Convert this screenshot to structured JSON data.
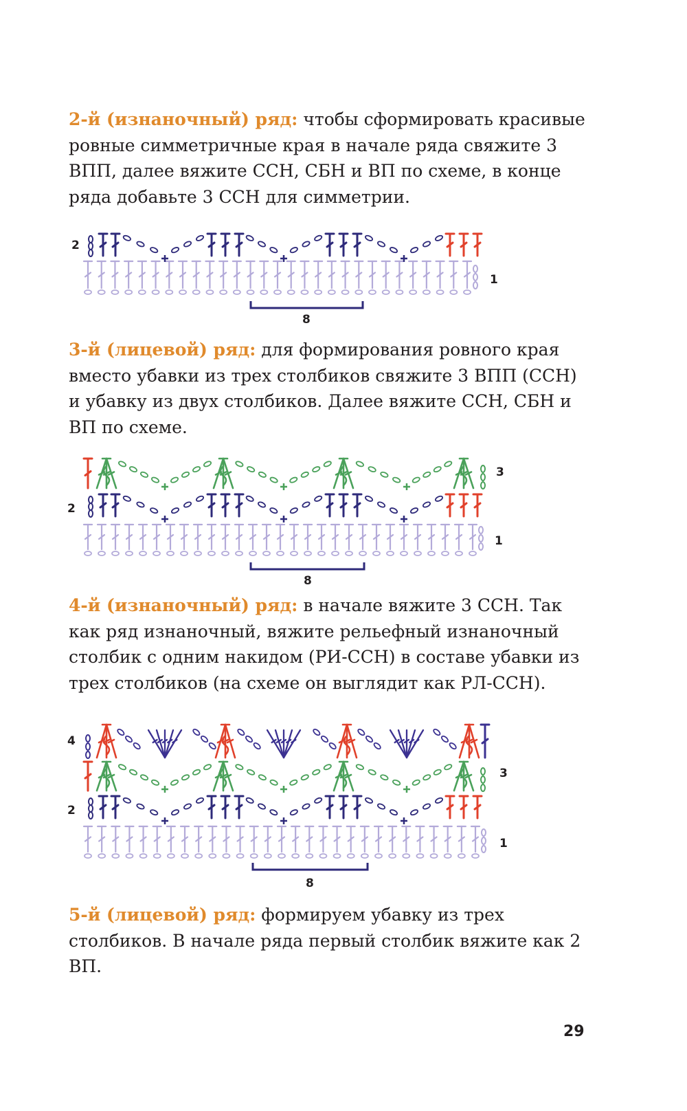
{
  "paragraphs": [
    {
      "lead": "2-й (изнаночный) ряд:",
      "text": " чтобы сформировать красивые ровные симметричные края в начале ряда свяжите 3 ВПП, далее вяжите ССН, СБН и ВП по схеме, в конце ряда добавьте 3 ССН для симметрии."
    },
    {
      "lead": "3-й (лицевой) ряд:",
      "text": " для формирования ровного края вместо убавки из трех столбиков свяжите 3 ВПП (ССН) и убавку из двух столбиков. Далее вяжите ССН, СБН и ВП по схеме."
    },
    {
      "lead": "4-й (изнаночный) ряд:",
      "text": " в начале вяжите 3 ССН. Так как ряд изнаночный, вяжите рельефный изнаночный столбик с одним накидом (РИ-ССН) в составе убавки из трех столбиков (на схеме он выглядит как РЛ-ССН)."
    },
    {
      "lead": "5-й (лицевой) ряд:",
      "text": " формируем убавку из трех столбиков. В начале ряда первый столбик вяжите как 2 ВП."
    }
  ],
  "diagrams": [
    {
      "row_labels": {
        "r1": "1",
        "r2": "2"
      },
      "repeat_label": "8"
    },
    {
      "row_labels": {
        "r1": "1",
        "r2": "2",
        "r3": "3"
      },
      "repeat_label": "8"
    },
    {
      "row_labels": {
        "r1": "1",
        "r2": "2",
        "r3": "3",
        "r4": "4"
      },
      "repeat_label": "8"
    }
  ],
  "colors": {
    "lead_text": "#e08a2c",
    "row1": "#b3aad9",
    "row2": "#2e2a7a",
    "row3": "#4aa15a",
    "row4": "#3b3191",
    "accent_red": "#e1412b",
    "bracket": "#2e2a7a"
  },
  "page_number": "29"
}
